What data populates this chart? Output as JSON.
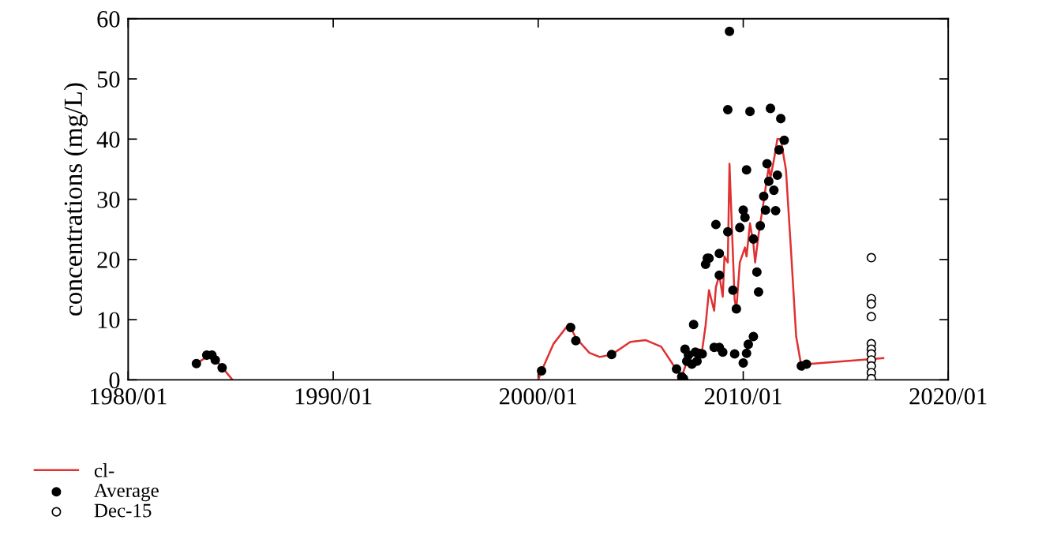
{
  "chart_data": {
    "type": "scatter",
    "ylabel": "concentrations (mg/L)",
    "xlim": [
      "1980-01",
      "2020-01"
    ],
    "ylim": [
      0,
      60
    ],
    "xticks": [
      {
        "value": "1980-01",
        "label": "1980/01"
      },
      {
        "value": "1990-01",
        "label": "1990/01"
      },
      {
        "value": "2000-01",
        "label": "2000/01"
      },
      {
        "value": "2010-01",
        "label": "2010/01"
      },
      {
        "value": "2020-01",
        "label": "2020/01"
      }
    ],
    "yticks": [
      0,
      10,
      20,
      30,
      40,
      50,
      60
    ],
    "grid": false,
    "legend": "bottom left",
    "series": [
      {
        "name": "cl-",
        "type": "line",
        "color": "#e03030",
        "marker": "none",
        "line_style": "solid",
        "x": [
          "1983-05",
          "1984-01",
          "1984-08",
          "1985-02",
          "1992-01",
          "2000-01",
          "2000-03",
          "2000-10",
          "2001-07",
          "2001-11",
          "2002-07",
          "2003-01",
          "2003-08",
          "2004-07",
          "2005-04",
          "2006-01",
          "2006-08",
          "2007-01",
          "2007-04",
          "2007-08",
          "2008-01",
          "2008-03",
          "2008-05",
          "2008-08",
          "2008-09",
          "2008-11",
          "2009-01",
          "2009-02",
          "2009-04",
          "2009-05",
          "2009-08",
          "2009-09",
          "2009-11",
          "2010-02",
          "2010-03",
          "2010-05",
          "2010-07",
          "2010-08",
          "2010-10",
          "2011-01",
          "2011-02",
          "2011-04",
          "2011-05",
          "2011-07",
          "2011-09",
          "2011-11",
          "2012-02",
          "2012-05",
          "2012-08",
          "2012-11",
          "2013-02",
          "2016-11"
        ],
        "values": [
          2.7,
          4.2,
          2.1,
          0,
          null,
          0,
          1.5,
          6,
          9.3,
          7,
          4.5,
          3.8,
          4.2,
          6.3,
          6.6,
          5.5,
          2.5,
          0.5,
          3,
          5,
          5,
          9,
          14.9,
          11.5,
          15.4,
          17.4,
          13.8,
          20.5,
          19.5,
          35.9,
          13.3,
          11.8,
          19.5,
          22,
          20.5,
          26,
          22.6,
          19.5,
          24.1,
          29.7,
          31.8,
          35.4,
          33.6,
          36.5,
          40,
          40,
          34.9,
          21.5,
          7.2,
          2.3,
          2.6,
          3.6
        ]
      },
      {
        "name": "Average",
        "color": "#000000",
        "marker": "circle",
        "x": [
          "1983-05",
          "1983-11",
          "1984-02",
          "1984-04",
          "1984-08",
          "2000-03",
          "2001-08",
          "2001-11",
          "2003-08",
          "2006-10",
          "2007-01",
          "2007-02",
          "2007-03",
          "2007-04",
          "2007-05",
          "2007-07",
          "2007-08",
          "2007-09",
          "2007-10",
          "2007-11",
          "2008-01",
          "2008-03",
          "2008-04",
          "2008-05",
          "2008-08",
          "2008-09",
          "2008-11",
          "2008-11",
          "2008-11",
          "2009-01",
          "2009-04",
          "2009-05",
          "2009-04",
          "2009-07",
          "2009-09",
          "2009-08",
          "2009-11",
          "2010-01",
          "2010-02",
          "2010-01",
          "2010-03",
          "2010-03",
          "2010-04",
          "2010-07",
          "2010-05",
          "2010-07",
          "2010-09",
          "2010-10",
          "2010-11",
          "2011-01",
          "2011-02",
          "2011-03",
          "2011-04",
          "2011-05",
          "2011-07",
          "2011-08",
          "2011-09",
          "2011-10",
          "2011-11",
          "2012-01",
          "2012-11",
          "2013-02"
        ],
        "values": [
          2.7,
          4.1,
          4.1,
          3.3,
          2.0,
          1.5,
          8.7,
          6.5,
          4.2,
          1.8,
          0.5,
          0.2,
          5.1,
          3.1,
          4.1,
          2.6,
          9.2,
          4.6,
          3.1,
          4.4,
          4.3,
          19.2,
          20.2,
          20.2,
          5.4,
          25.8,
          21,
          17.4,
          5.4,
          4.6,
          44.9,
          57.9,
          24.6,
          14.9,
          11.8,
          4.3,
          25.3,
          28.2,
          27,
          2.8,
          34.9,
          4.4,
          5.9,
          7.2,
          44.6,
          23.4,
          17.9,
          14.6,
          25.6,
          30.5,
          28.2,
          35.9,
          33,
          45.1,
          31.5,
          28.1,
          34,
          38.2,
          43.4,
          39.8,
          2.3,
          2.6
        ]
      },
      {
        "name": "Dec-15",
        "color": "#ffffff",
        "marker": "circle",
        "x": [
          "2016-04",
          "2016-04",
          "2016-04",
          "2016-04",
          "2016-04",
          "2016-04",
          "2016-04",
          "2016-04",
          "2016-04",
          "2016-04",
          "2016-04"
        ],
        "values": [
          20.3,
          13.5,
          12.6,
          10.5,
          6,
          5.1,
          4.3,
          3.3,
          2.3,
          1.2,
          0.2
        ]
      }
    ]
  }
}
